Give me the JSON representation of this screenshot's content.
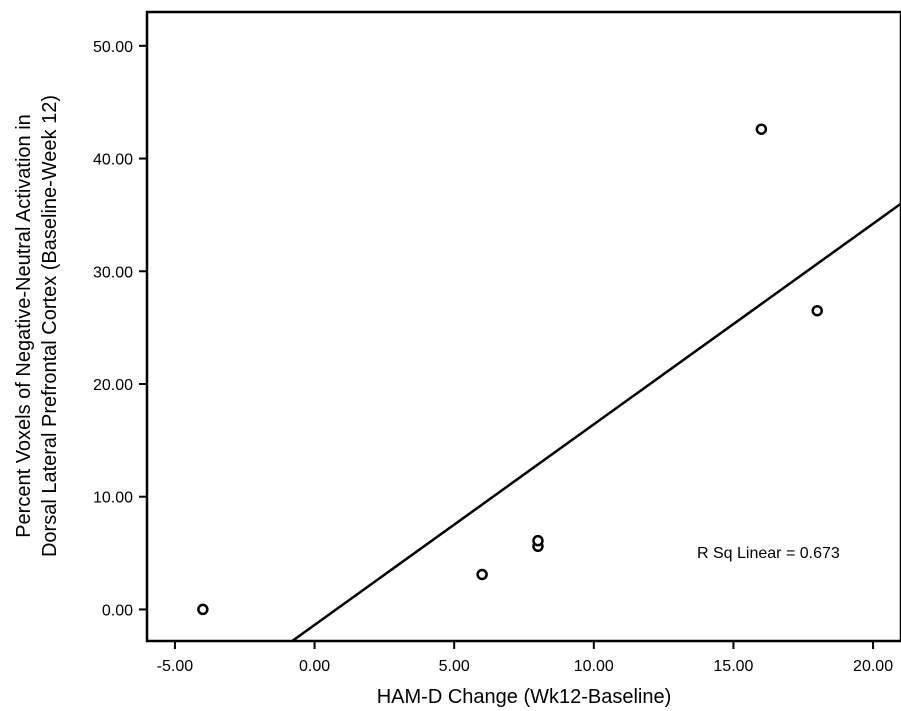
{
  "chart_data": {
    "type": "scatter",
    "title": "",
    "xlabel": "HAM-D Change (Wk12-Baseline)",
    "ylabel_lines": [
      "Percent Voxels of Negative-Neutral Activation in",
      "Dorsal Lateral Prefrontal Cortex (Baseline-Week 12)"
    ],
    "xlim": [
      -6,
      21
    ],
    "ylim": [
      -2.8,
      53
    ],
    "x_ticks": [
      -5,
      0,
      5,
      10,
      15,
      20
    ],
    "x_tick_labels": [
      "-5.00",
      "0.00",
      "5.00",
      "10.00",
      "15.00",
      "20.00"
    ],
    "y_ticks": [
      0,
      10,
      20,
      30,
      40,
      50
    ],
    "y_tick_labels": [
      "0.00",
      "10.00",
      "20.00",
      "30.00",
      "40.00",
      "50.00"
    ],
    "points": [
      {
        "x": -4,
        "y": 0.0
      },
      {
        "x": 6,
        "y": 3.1
      },
      {
        "x": 8,
        "y": 5.6
      },
      {
        "x": 8,
        "y": 6.1
      },
      {
        "x": 16,
        "y": 42.6
      },
      {
        "x": 18,
        "y": 26.5
      }
    ],
    "fit_line": {
      "x0": -0.8,
      "y0": -2.8,
      "x1": 21,
      "y1": 36.0
    },
    "annotation": "R Sq Linear = 0.673",
    "grid": false,
    "legend": "none"
  }
}
